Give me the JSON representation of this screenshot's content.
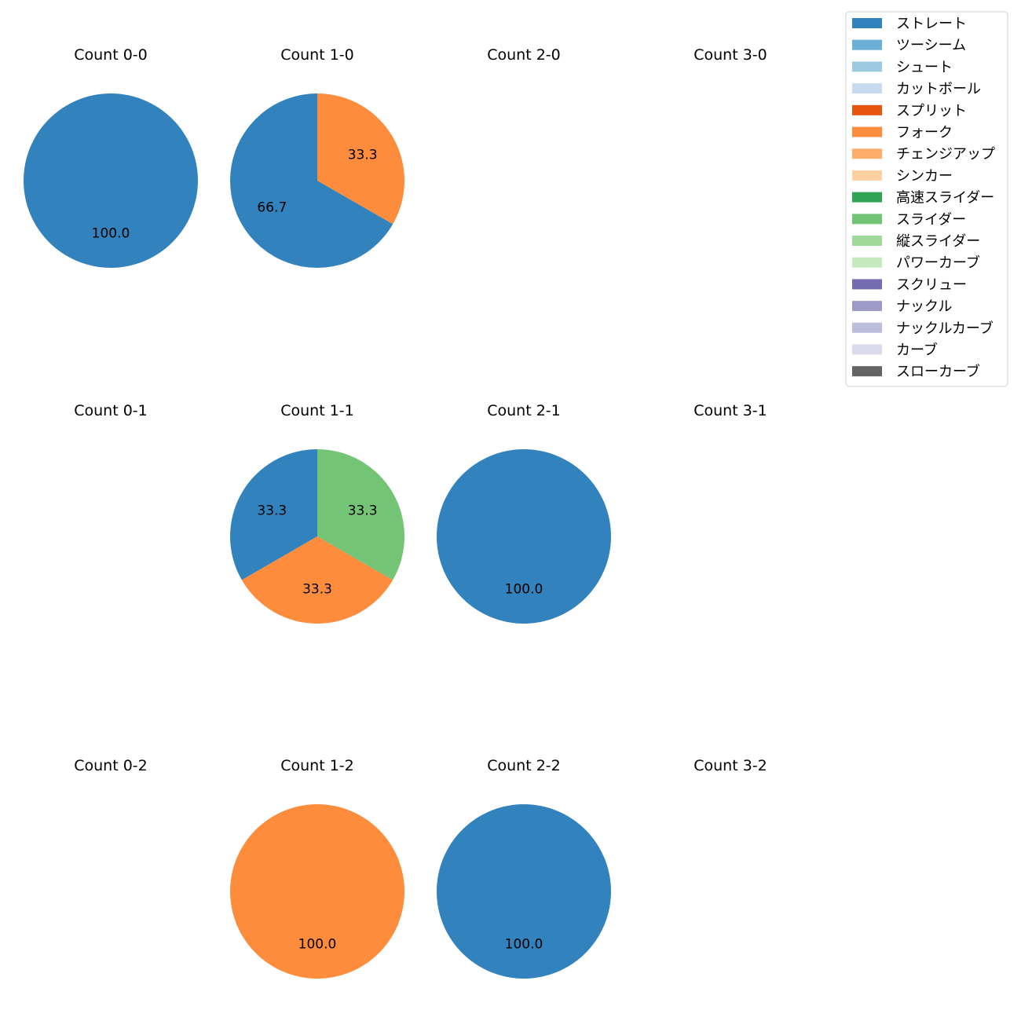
{
  "chart_data": {
    "type": "pie",
    "legend_position": "top-right",
    "legend": [
      {
        "label": "ストレート",
        "color": "#3182bd"
      },
      {
        "label": "ツーシーム",
        "color": "#6baed6"
      },
      {
        "label": "シュート",
        "color": "#9ecae1"
      },
      {
        "label": "カットボール",
        "color": "#c6dbef"
      },
      {
        "label": "スプリット",
        "color": "#e6550d"
      },
      {
        "label": "フォーク",
        "color": "#fd8d3c"
      },
      {
        "label": "チェンジアップ",
        "color": "#fdae6b"
      },
      {
        "label": "シンカー",
        "color": "#fdd0a2"
      },
      {
        "label": "高速スライダー",
        "color": "#31a354"
      },
      {
        "label": "スライダー",
        "color": "#74c476"
      },
      {
        "label": "縦スライダー",
        "color": "#a1d99b"
      },
      {
        "label": "パワーカーブ",
        "color": "#c7e9c0"
      },
      {
        "label": "スクリュー",
        "color": "#756bb1"
      },
      {
        "label": "ナックル",
        "color": "#9e9ac8"
      },
      {
        "label": "ナックルカーブ",
        "color": "#bcbddc"
      },
      {
        "label": "カーブ",
        "color": "#dadaeb"
      },
      {
        "label": "スローカーブ",
        "color": "#636363"
      }
    ],
    "panels": [
      {
        "title": "Count 0-0",
        "slices": [
          {
            "pitch": "ストレート",
            "value": 100.0
          }
        ]
      },
      {
        "title": "Count 1-0",
        "slices": [
          {
            "pitch": "ストレート",
            "value": 66.7
          },
          {
            "pitch": "フォーク",
            "value": 33.3
          }
        ]
      },
      {
        "title": "Count 2-0",
        "slices": []
      },
      {
        "title": "Count 3-0",
        "slices": []
      },
      {
        "title": "Count 0-1",
        "slices": []
      },
      {
        "title": "Count 1-1",
        "slices": [
          {
            "pitch": "ストレート",
            "value": 33.3
          },
          {
            "pitch": "フォーク",
            "value": 33.3
          },
          {
            "pitch": "スライダー",
            "value": 33.3
          }
        ]
      },
      {
        "title": "Count 2-1",
        "slices": [
          {
            "pitch": "ストレート",
            "value": 100.0
          }
        ]
      },
      {
        "title": "Count 3-1",
        "slices": []
      },
      {
        "title": "Count 0-2",
        "slices": []
      },
      {
        "title": "Count 1-2",
        "slices": [
          {
            "pitch": "フォーク",
            "value": 100.0
          }
        ]
      },
      {
        "title": "Count 2-2",
        "slices": [
          {
            "pitch": "ストレート",
            "value": 100.0
          }
        ]
      },
      {
        "title": "Count 3-2",
        "slices": []
      }
    ]
  }
}
